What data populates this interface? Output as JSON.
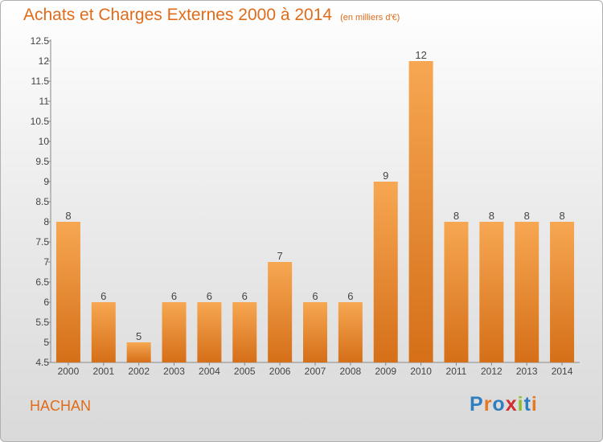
{
  "header": {
    "title": "Achats et Charges Externes 2000 à 2014",
    "unit": "(en milliers d'€)"
  },
  "footer": {
    "commune": "HACHAN",
    "brand": "Proxiti",
    "brand_letter_colors": [
      "#2f7fc0",
      "#e8781e",
      "#2f7fc0",
      "#d22d2d",
      "#8bbf2c",
      "#2f7fc0",
      "#e8781e"
    ]
  },
  "colors": {
    "title": "#e06c1a",
    "bar_light": "#f7a752",
    "bar_dark": "#d56f18",
    "axis": "#888888",
    "text": "#444444"
  },
  "chart_data": {
    "type": "bar",
    "categories": [
      "2000",
      "2001",
      "2002",
      "2003",
      "2004",
      "2005",
      "2006",
      "2007",
      "2008",
      "2009",
      "2010",
      "2011",
      "2012",
      "2013",
      "2014"
    ],
    "values": [
      8,
      6,
      5,
      6,
      6,
      6,
      7,
      6,
      6,
      9,
      12,
      8,
      8,
      8,
      8
    ],
    "ylim": [
      4.5,
      12.5
    ],
    "yticks": [
      4.5,
      5,
      5.5,
      6,
      6.5,
      7,
      7.5,
      8,
      8.5,
      9,
      9.5,
      10,
      10.5,
      11,
      11.5,
      12,
      12.5
    ],
    "data_labels": true,
    "grid": false,
    "legend": "none"
  }
}
